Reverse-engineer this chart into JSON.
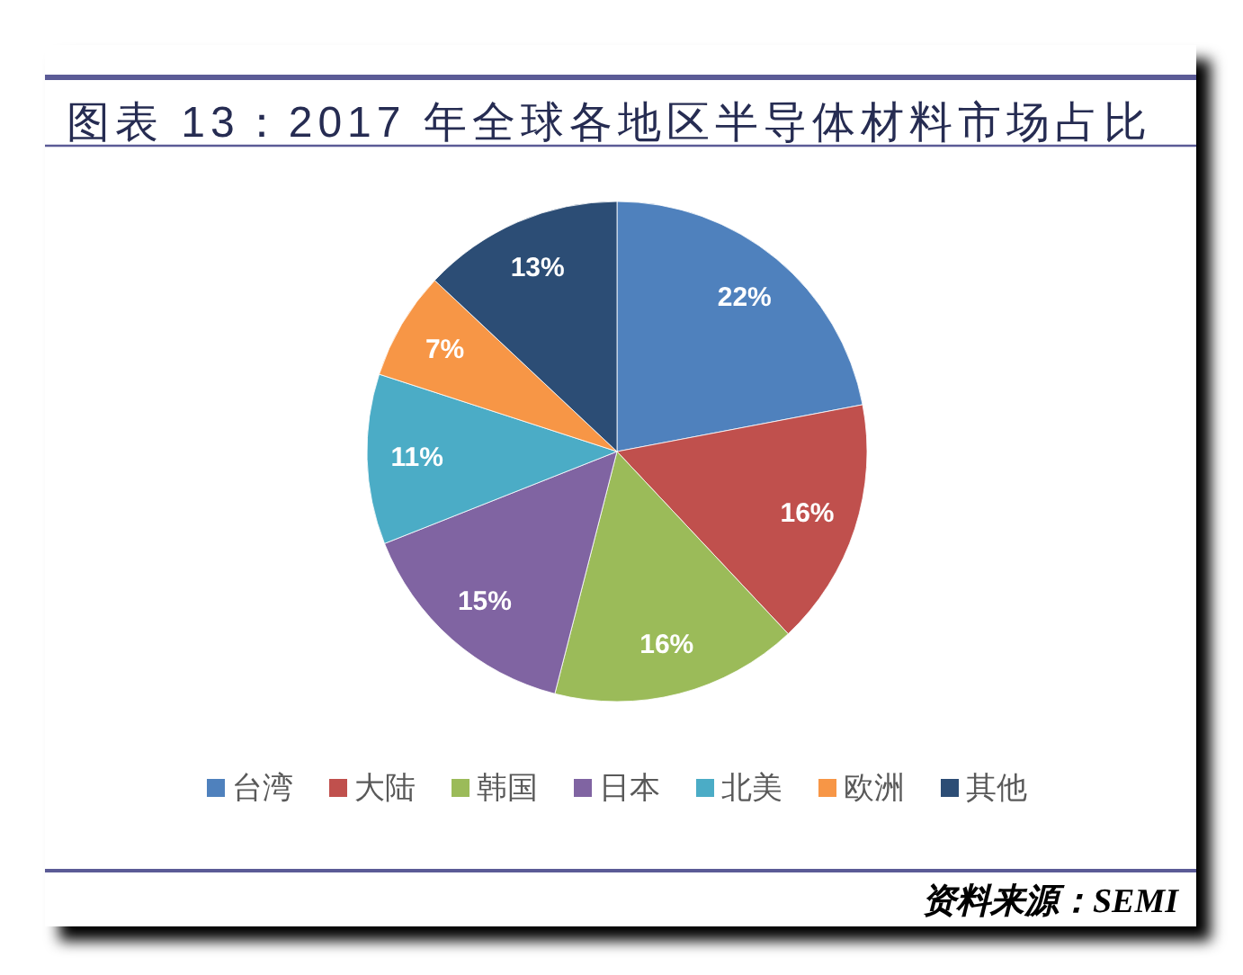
{
  "chart_data": {
    "type": "pie",
    "title": "图表 13：2017 年全球各地区半导体材料市场占比",
    "categories": [
      "台湾",
      "大陆",
      "韩国",
      "日本",
      "北美",
      "欧洲",
      "其他"
    ],
    "values": [
      22,
      16,
      16,
      15,
      11,
      7,
      13
    ],
    "colors": [
      "#4f81bd",
      "#c0504d",
      "#9bbb59",
      "#8064a2",
      "#4bacc6",
      "#f79646",
      "#2c4d75"
    ],
    "value_labels": [
      "22%",
      "16%",
      "16%",
      "15%",
      "11%",
      "7%",
      "13%"
    ],
    "legend": "bottom",
    "annotations": [
      "资料来源：SEMI"
    ]
  }
}
